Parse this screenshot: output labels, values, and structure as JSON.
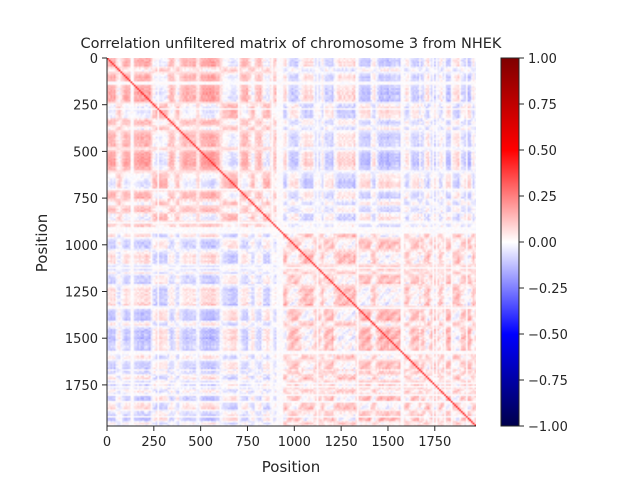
{
  "chart_data": {
    "type": "heatmap",
    "title": "Correlation unfiltered matrix of chromosome 3 from NHEK",
    "xlabel": "Position",
    "ylabel": "Position",
    "n": 1970,
    "xlim": [
      0,
      1970
    ],
    "ylim": [
      1970,
      0
    ],
    "x_ticks": [
      0,
      250,
      500,
      750,
      1000,
      1250,
      1500,
      1750
    ],
    "y_ticks": [
      0,
      250,
      500,
      750,
      1000,
      1250,
      1500,
      1750
    ],
    "colorbar": {
      "cmap": "seismic",
      "vmin": -1.0,
      "vmax": 1.0,
      "ticks": [
        1.0,
        0.75,
        0.5,
        0.25,
        0.0,
        -0.25,
        -0.5,
        -0.75,
        -1.0
      ],
      "tick_labels": [
        "1.00",
        "0.75",
        "0.50",
        "0.25",
        "0.00",
        "−0.25",
        "−0.50",
        "−0.75",
        "−1.00"
      ]
    },
    "blocks": [
      {
        "start": 0,
        "end": 940,
        "description": "upper-left compartment block, mostly positive correlation"
      },
      {
        "start": 940,
        "end": 1970,
        "description": "lower-right compartment block, checkered positive pattern"
      }
    ],
    "blank_band": {
      "start": 900,
      "end": 940
    },
    "diagonal_value": 1.0,
    "typical_range": [
      -0.3,
      0.35
    ]
  }
}
